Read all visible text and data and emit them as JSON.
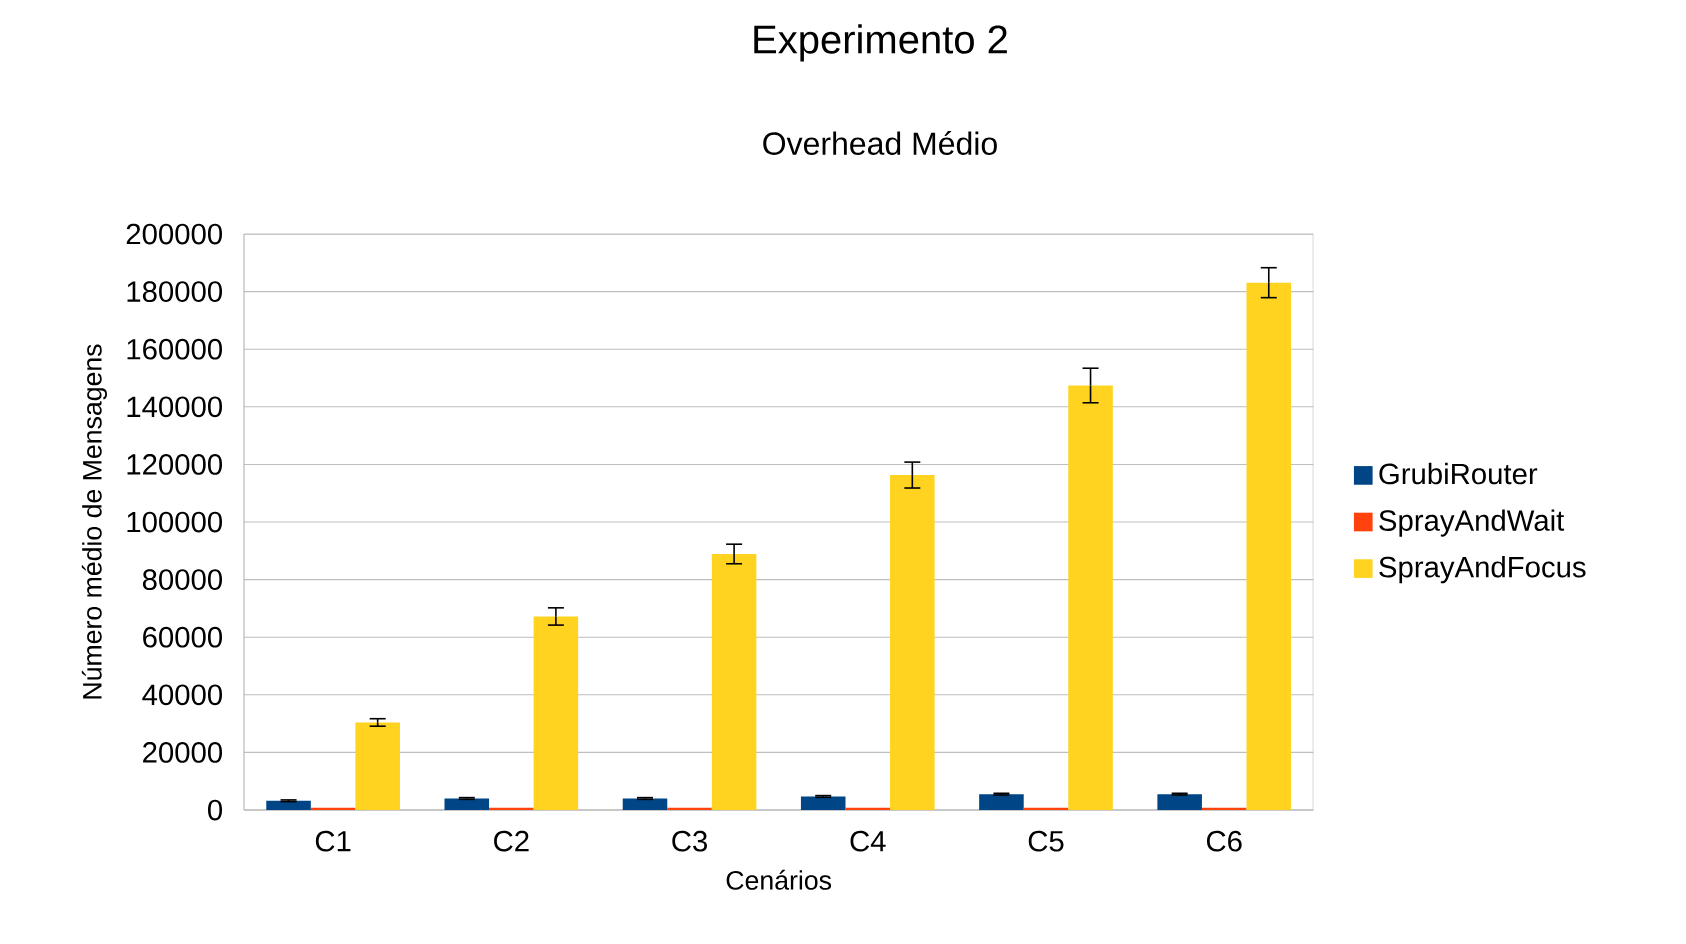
{
  "chart_data": {
    "type": "bar",
    "title": "Experimento 2",
    "subtitle": "Overhead Médio",
    "xlabel": "Cenários",
    "ylabel": "Número médio de Mensagens",
    "categories": [
      "C1",
      "C2",
      "C3",
      "C4",
      "C5",
      "C6"
    ],
    "series": [
      {
        "name": "GrubiRouter",
        "color": "#004586",
        "values": [
          3200,
          4000,
          4000,
          4700,
          5500,
          5500
        ],
        "errors": [
          300,
          300,
          300,
          300,
          300,
          300
        ]
      },
      {
        "name": "SprayAndWait",
        "color": "#ff420e",
        "values": [
          800,
          800,
          800,
          800,
          800,
          800
        ]
      },
      {
        "name": "SprayAndFocus",
        "color": "#ffd320",
        "values": [
          30400,
          67200,
          88900,
          116300,
          147400,
          183100
        ],
        "errors": [
          1300,
          3000,
          3400,
          4500,
          6000,
          5200
        ]
      }
    ],
    "ylim": [
      0,
      200000
    ],
    "yticks": [
      0,
      20000,
      40000,
      60000,
      80000,
      100000,
      120000,
      140000,
      160000,
      180000,
      200000
    ],
    "grid": "y",
    "legend": "right"
  }
}
